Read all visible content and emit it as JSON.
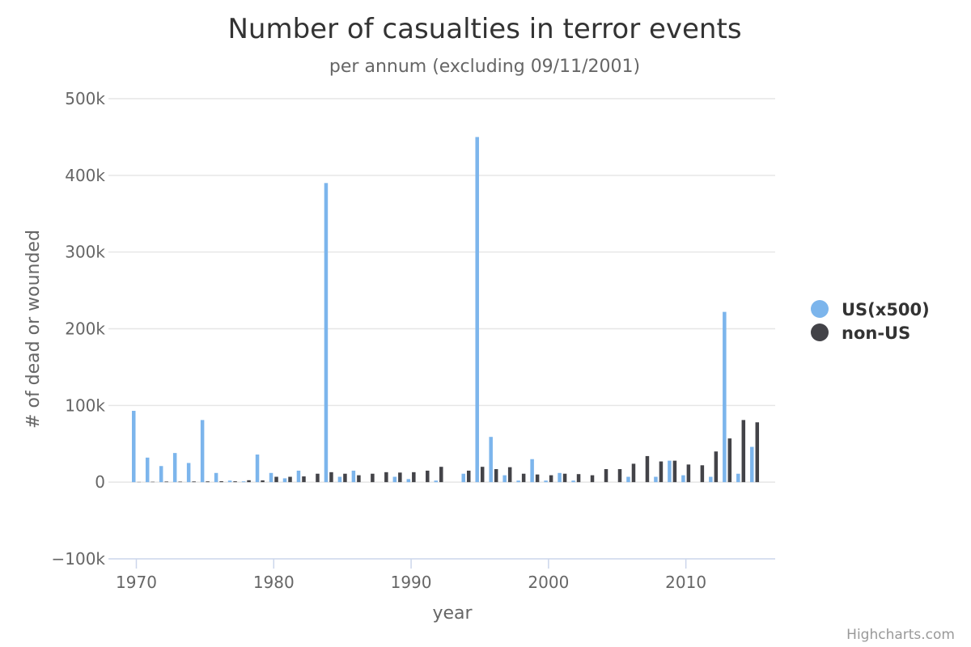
{
  "chart_data": {
    "type": "bar",
    "title": "Number of casualties in terror events",
    "subtitle": "per annum (excluding 09/11/2001)",
    "xlabel": "year",
    "ylabel": "# of dead or wounded",
    "ylim": [
      -100000,
      500000
    ],
    "yticks": [
      -100000,
      0,
      100000,
      200000,
      300000,
      400000,
      500000
    ],
    "ytick_labels": [
      "−100k",
      "0",
      "100k",
      "200k",
      "300k",
      "400k",
      "500k"
    ],
    "xticks": [
      1970,
      1980,
      1990,
      2000,
      2010
    ],
    "xtick_labels": [
      "1970",
      "1980",
      "1990",
      "2000",
      "2010"
    ],
    "xlim": [
      1969.5,
      2016.5
    ],
    "grid": true,
    "legend_position": "right",
    "x": [
      1970,
      1971,
      1972,
      1973,
      1974,
      1975,
      1976,
      1977,
      1978,
      1979,
      1980,
      1981,
      1982,
      1983,
      1984,
      1985,
      1986,
      1987,
      1988,
      1989,
      1990,
      1991,
      1992,
      1993,
      1994,
      1995,
      1996,
      1997,
      1998,
      1999,
      2000,
      2001,
      2002,
      2003,
      2004,
      2005,
      2006,
      2007,
      2008,
      2009,
      2010,
      2011,
      2012,
      2013,
      2014,
      2015
    ],
    "series": [
      {
        "name": "US(x500)",
        "color": "#7cb5ec",
        "values": [
          93000,
          32000,
          21000,
          38000,
          25000,
          81000,
          12000,
          2000,
          1000,
          36000,
          12000,
          5000,
          15000,
          0,
          390000,
          7000,
          15000,
          0,
          0,
          7000,
          4000,
          0,
          2000,
          0,
          11000,
          450000,
          59000,
          9000,
          2000,
          30000,
          2000,
          12000,
          2000,
          0,
          0,
          0,
          7000,
          0,
          7000,
          28000,
          9000,
          0,
          7000,
          222000,
          11000,
          46000
        ]
      },
      {
        "name": "non-US",
        "color": "#434348",
        "values": [
          300,
          500,
          800,
          700,
          900,
          1000,
          1200,
          1100,
          2500,
          2300,
          7000,
          7000,
          7500,
          11000,
          13000,
          11000,
          9000,
          11000,
          13000,
          12500,
          13000,
          15000,
          20000,
          0,
          15000,
          20000,
          17000,
          19500,
          11000,
          10000,
          9000,
          11000,
          10500,
          9000,
          17000,
          17000,
          24000,
          34000,
          27000,
          28000,
          23000,
          22000,
          40000,
          57000,
          81000,
          78000
        ]
      }
    ],
    "credits": "Highcharts.com"
  }
}
